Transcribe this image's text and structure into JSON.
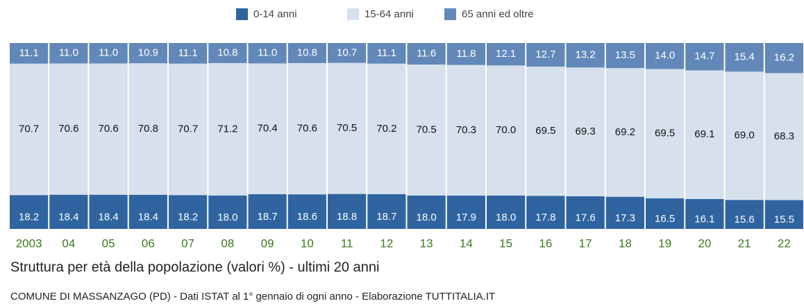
{
  "chart_data": {
    "type": "stacked_bar_100",
    "title": "Struttura per età della popolazione (valori %) - ultimi 20 anni",
    "subtitle": "COMUNE DI MASSANZAGO (PD) - Dati ISTAT al 1° gennaio di ogni anno - Elaborazione TUTTITALIA.IT",
    "categories": [
      "2003",
      "04",
      "05",
      "06",
      "07",
      "08",
      "09",
      "10",
      "11",
      "12",
      "13",
      "14",
      "15",
      "16",
      "17",
      "18",
      "19",
      "20",
      "21",
      "22"
    ],
    "series": [
      {
        "name": "0-14 anni",
        "color": "#2f64a0",
        "text_color": "#ffffff",
        "values": [
          18.2,
          18.4,
          18.4,
          18.4,
          18.2,
          18.0,
          18.7,
          18.6,
          18.8,
          18.7,
          18.0,
          17.9,
          18.0,
          17.8,
          17.6,
          17.3,
          16.5,
          16.1,
          15.6,
          15.5
        ],
        "value_labels": [
          "18.2",
          "18.4",
          "18.4",
          "18.4",
          "18.2",
          "18.0",
          "18.7",
          "18.6",
          "18.8",
          "18.7",
          "18.0",
          "17.9",
          "18.0",
          "17.8",
          "17.6",
          "17.3",
          "16.5",
          "16.1",
          "15.6",
          "15.5"
        ]
      },
      {
        "name": "15-64 anni",
        "color": "#d7e1ed",
        "text_color": "#111111",
        "values": [
          70.7,
          70.6,
          70.6,
          70.8,
          70.7,
          71.2,
          70.4,
          70.6,
          70.5,
          70.2,
          70.5,
          70.3,
          70.0,
          69.5,
          69.3,
          69.2,
          69.5,
          69.1,
          69.0,
          68.3
        ],
        "value_labels": [
          "70.7",
          "70.6",
          "70.6",
          "70.8",
          "70.7",
          "71.2",
          "70.4",
          "70.6",
          "70.5",
          "70.2",
          "70.5",
          "70.3",
          "70.0",
          "69.5",
          "69.3",
          "69.2",
          "69.5",
          "69.1",
          "69.0",
          "68.3"
        ]
      },
      {
        "name": "65 anni ed oltre",
        "color": "#6288b9",
        "text_color": "#ffffff",
        "values": [
          11.1,
          11.0,
          11.0,
          10.9,
          11.1,
          10.8,
          11.0,
          10.8,
          10.7,
          11.1,
          11.6,
          11.8,
          12.1,
          12.7,
          13.2,
          13.5,
          14.0,
          14.7,
          15.4,
          16.2
        ],
        "value_labels": [
          "11.1",
          "11.0",
          "11.0",
          "10.9",
          "11.1",
          "10.8",
          "11.0",
          "10.8",
          "10.7",
          "11.1",
          "11.6",
          "11.8",
          "12.1",
          "12.7",
          "13.2",
          "13.5",
          "14.0",
          "14.7",
          "15.4",
          "16.2"
        ]
      }
    ],
    "legend": "top"
  }
}
